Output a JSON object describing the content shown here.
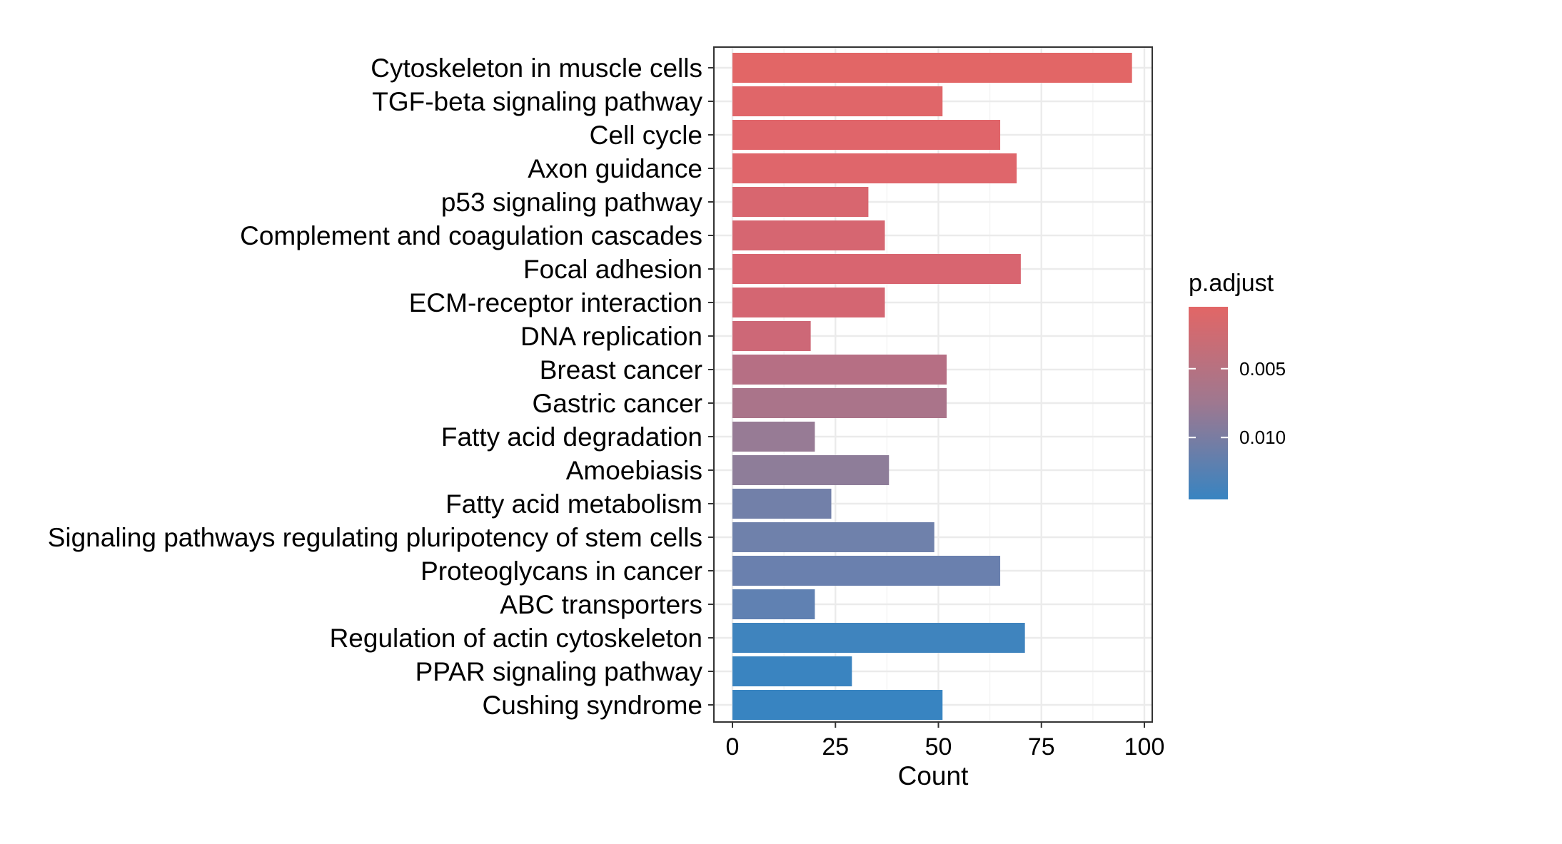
{
  "chart_data": {
    "type": "bar",
    "orientation": "horizontal",
    "xlabel": "Count",
    "ylabel": "",
    "title": "",
    "xlim": [
      0,
      100
    ],
    "x_ticks": [
      0,
      25,
      50,
      75,
      100
    ],
    "x_tick_labels": [
      "0",
      "25",
      "50",
      "75",
      "100"
    ],
    "grid": true,
    "categories": [
      "Cytoskeleton in muscle cells",
      "TGF-beta signaling pathway",
      "Cell cycle",
      "Axon guidance",
      "p53 signaling pathway",
      "Complement and coagulation cascades",
      "Focal adhesion",
      "ECM-receptor interaction",
      "DNA replication",
      "Breast cancer",
      "Gastric cancer",
      "Fatty acid degradation",
      "Amoebiasis",
      "Fatty acid metabolism",
      "Signaling pathways regulating pluripotency of stem cells",
      "Proteoglycans in cancer",
      "ABC transporters",
      "Regulation of actin cytoskeleton",
      "PPAR signaling pathway",
      "Cushing syndrome"
    ],
    "values": [
      97,
      51,
      65,
      69,
      33,
      37,
      70,
      37,
      19,
      52,
      52,
      20,
      38,
      24,
      49,
      65,
      20,
      71,
      29,
      51
    ],
    "bar_colors": [
      "#e26666",
      "#e06669",
      "#e0656a",
      "#df666b",
      "#d8666f",
      "#d66671",
      "#d86570",
      "#d46672",
      "#cd6877",
      "#b66f84",
      "#aa748a",
      "#977b95",
      "#8e7d99",
      "#7280a9",
      "#6f81ab",
      "#6a80ae",
      "#6081b2",
      "#3f84be",
      "#3a84c0",
      "#3884c1"
    ],
    "color_scale": {
      "title": "p.adjust",
      "tick_labels": [
        "0.005",
        "0.010"
      ],
      "tick_values": [
        0.005,
        0.01
      ],
      "range": [
        0.0005,
        0.0145
      ],
      "color_low_value": "#e26666",
      "color_high_value": "#3884c1",
      "legend_position": "right"
    }
  }
}
